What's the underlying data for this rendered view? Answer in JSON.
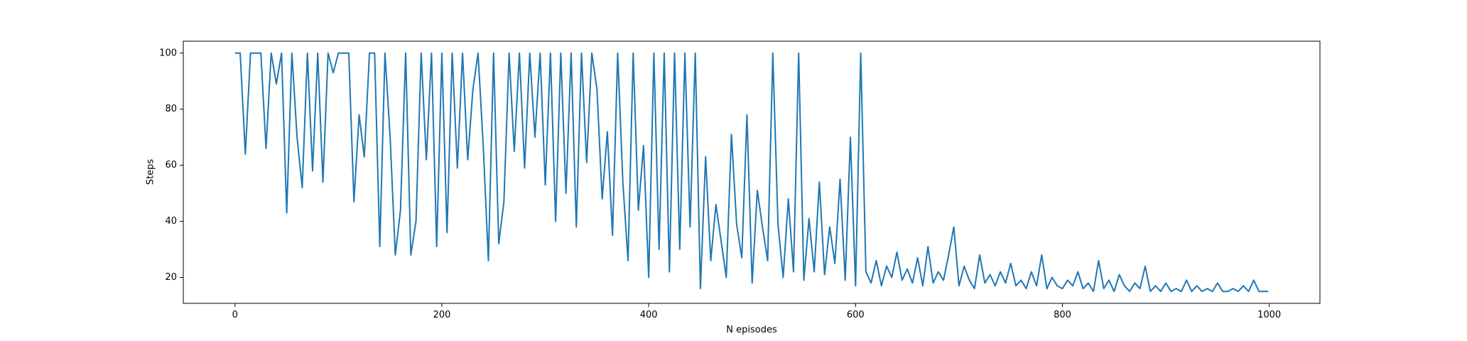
{
  "chart_data": {
    "type": "line",
    "xlabel": "N episodes",
    "ylabel": "Steps",
    "color": "#1f77b4",
    "xlim": [
      -50,
      1049
    ],
    "ylim": [
      10.75,
      104.25
    ],
    "xticks": [
      0,
      200,
      400,
      600,
      800,
      1000
    ],
    "yticks": [
      20,
      40,
      60,
      80,
      100
    ],
    "x": [
      0,
      5,
      10,
      15,
      20,
      25,
      30,
      35,
      40,
      45,
      50,
      55,
      60,
      65,
      70,
      75,
      80,
      85,
      90,
      95,
      100,
      105,
      110,
      115,
      120,
      125,
      130,
      135,
      140,
      145,
      150,
      155,
      160,
      165,
      170,
      175,
      180,
      185,
      190,
      195,
      200,
      205,
      210,
      215,
      220,
      225,
      230,
      235,
      240,
      245,
      250,
      255,
      260,
      265,
      270,
      275,
      280,
      285,
      290,
      295,
      300,
      305,
      310,
      315,
      320,
      325,
      330,
      335,
      340,
      345,
      350,
      355,
      360,
      365,
      370,
      375,
      380,
      385,
      390,
      395,
      400,
      405,
      410,
      415,
      420,
      425,
      430,
      435,
      440,
      445,
      450,
      455,
      460,
      465,
      470,
      475,
      480,
      485,
      490,
      495,
      500,
      505,
      510,
      515,
      520,
      525,
      530,
      535,
      540,
      545,
      550,
      555,
      560,
      565,
      570,
      575,
      580,
      585,
      590,
      595,
      600,
      605,
      610,
      615,
      620,
      625,
      630,
      635,
      640,
      645,
      650,
      655,
      660,
      665,
      670,
      675,
      680,
      685,
      690,
      695,
      700,
      705,
      710,
      715,
      720,
      725,
      730,
      735,
      740,
      745,
      750,
      755,
      760,
      765,
      770,
      775,
      780,
      785,
      790,
      795,
      800,
      805,
      810,
      815,
      820,
      825,
      830,
      835,
      840,
      845,
      850,
      855,
      860,
      865,
      870,
      875,
      880,
      885,
      890,
      895,
      900,
      905,
      910,
      915,
      920,
      925,
      930,
      935,
      940,
      945,
      950,
      955,
      960,
      965,
      970,
      975,
      980,
      985,
      990,
      995,
      999
    ],
    "values": [
      100,
      100,
      64,
      100,
      100,
      100,
      66,
      100,
      89,
      100,
      43,
      100,
      70,
      52,
      100,
      58,
      100,
      54,
      100,
      93,
      100,
      100,
      100,
      47,
      78,
      63,
      100,
      100,
      31,
      100,
      70,
      28,
      44,
      100,
      28,
      40,
      100,
      62,
      100,
      31,
      100,
      36,
      100,
      59,
      100,
      62,
      87,
      100,
      67,
      26,
      100,
      32,
      47,
      100,
      65,
      100,
      59,
      100,
      70,
      100,
      53,
      100,
      40,
      100,
      50,
      100,
      38,
      100,
      61,
      100,
      87,
      48,
      72,
      35,
      100,
      54,
      26,
      100,
      44,
      67,
      20,
      100,
      30,
      100,
      22,
      100,
      30,
      100,
      38,
      100,
      16,
      63,
      26,
      46,
      33,
      20,
      71,
      39,
      27,
      78,
      18,
      51,
      38,
      26,
      100,
      39,
      20,
      48,
      22,
      100,
      19,
      41,
      22,
      54,
      21,
      38,
      25,
      55,
      19,
      70,
      17,
      100,
      22,
      18,
      26,
      17,
      24,
      20,
      29,
      19,
      23,
      18,
      27,
      17,
      31,
      18,
      22,
      19,
      28,
      38,
      17,
      24,
      19,
      16,
      28,
      18,
      21,
      17,
      22,
      18,
      25,
      17,
      19,
      16,
      22,
      17,
      28,
      16,
      20,
      17,
      16,
      19,
      17,
      22,
      16,
      18,
      15,
      26,
      16,
      19,
      15,
      21,
      17,
      15,
      18,
      16,
      24,
      15,
      17,
      15,
      18,
      15,
      16,
      15,
      19,
      15,
      17,
      15,
      16,
      15,
      18,
      15,
      15,
      16,
      15,
      17,
      15,
      19,
      15,
      15,
      15
    ]
  }
}
